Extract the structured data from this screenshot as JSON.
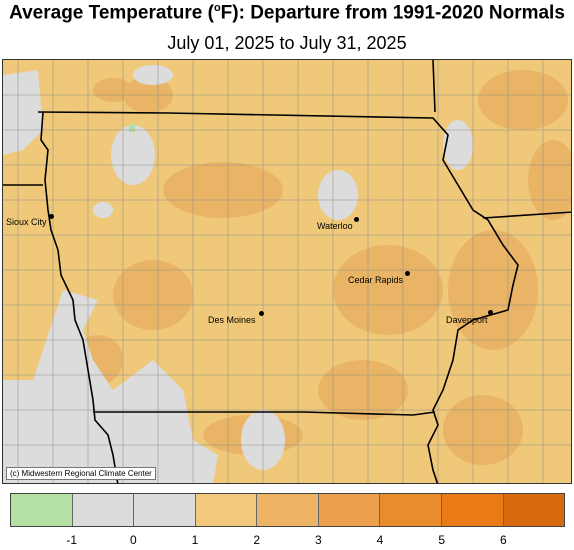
{
  "title": {
    "prefix": "Average Temperature (",
    "degree": "o",
    "suffix": "F): Departure from 1991-2020 Normals"
  },
  "subtitle": "July 01, 2025 to July 31, 2025",
  "credit": "(c) Midwestern Regional Climate Center",
  "cities": [
    {
      "name": "Sioux City"
    },
    {
      "name": "Waterloo"
    },
    {
      "name": "Cedar Rapids"
    },
    {
      "name": "Des Moines"
    },
    {
      "name": "Davenport"
    }
  ],
  "legend": {
    "colors": [
      "#b5e0a4",
      "#dcdcdc",
      "#dcdcdc",
      "#f0c97d",
      "#ecb464",
      "#eca04c",
      "#ea8c2e",
      "#ea7a14",
      "#d86a10"
    ],
    "labels": [
      "-1",
      "0",
      "1",
      "2",
      "3",
      "4",
      "5",
      "6"
    ]
  },
  "colors": {
    "near_normal": "#dcdcdc",
    "warm_1_2": "#efc979",
    "warm_2_3": "#e9b465",
    "cool": "#b5e0a4"
  }
}
